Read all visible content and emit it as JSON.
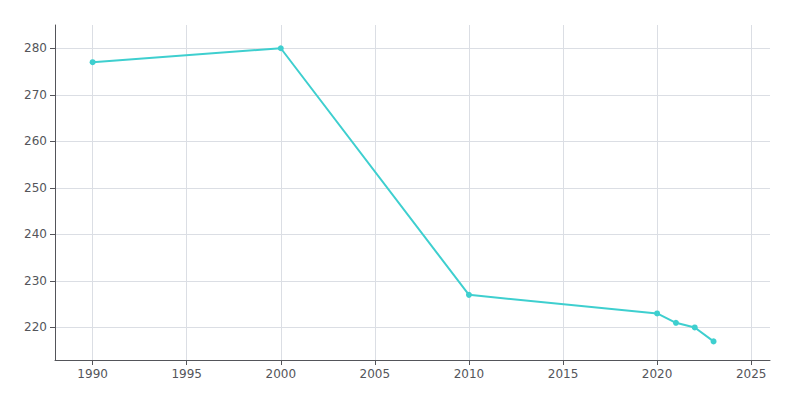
{
  "chart_data": {
    "type": "line",
    "x": [
      1990,
      2000,
      2010,
      2020,
      2021,
      2022,
      2023
    ],
    "values": [
      277,
      280,
      227,
      223,
      221,
      220,
      217
    ],
    "color": "#3ECFCF",
    "marker": "circle",
    "line_style": "solid",
    "xlim": [
      1988,
      2026
    ],
    "xticks": [
      1990,
      1995,
      2000,
      2005,
      2010,
      2015,
      2020,
      2025
    ],
    "ylim": [
      213,
      285
    ],
    "yticks": [
      220,
      230,
      240,
      250,
      260,
      270,
      280
    ],
    "grid": true
  }
}
